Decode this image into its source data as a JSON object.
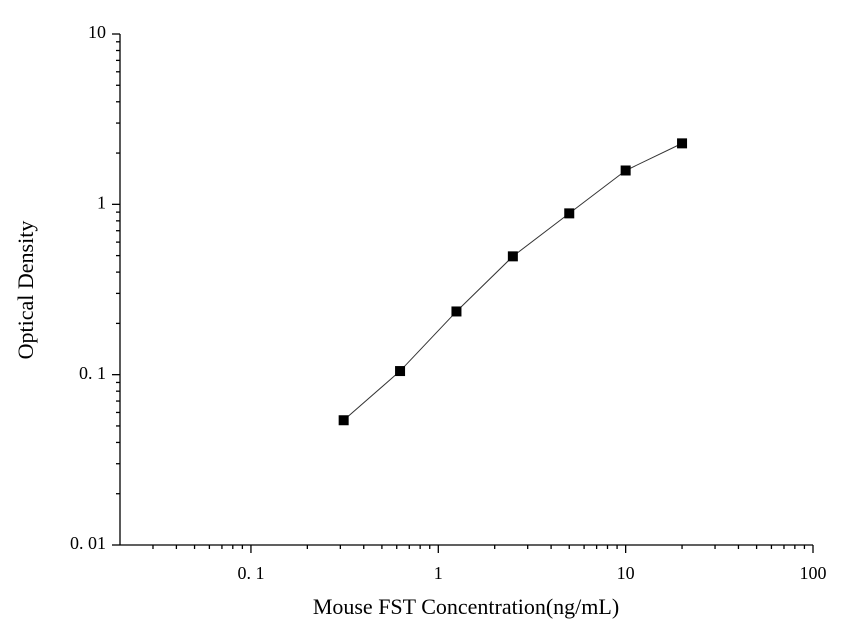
{
  "chart_data": {
    "type": "line",
    "x_label": "Mouse FST Concentration(ng/mL)",
    "y_label": "Optical Density",
    "x": [
      0.3125,
      0.625,
      1.25,
      2.5,
      5,
      10,
      20
    ],
    "series": [
      {
        "color": "#000000",
        "values": [
          0.054,
          0.105,
          0.235,
          0.495,
          0.885,
          1.58,
          2.28
        ]
      }
    ],
    "x_log": true,
    "y_log": true,
    "xlim": [
      0.02,
      100
    ],
    "ylim": [
      0.01,
      10
    ],
    "xticks": [
      {
        "value": 0.1,
        "label": "0. 1"
      },
      1,
      10,
      100
    ],
    "yticks": [
      {
        "value": 0.01,
        "label": "0. 01"
      },
      {
        "value": 0.1,
        "label": "0. 1"
      },
      1,
      10
    ],
    "x_minor_ticks": [
      0.03,
      0.04,
      0.05,
      0.06,
      0.07,
      0.08,
      0.09,
      0.2,
      0.3,
      0.4,
      0.5,
      0.6,
      0.7,
      0.8,
      0.9,
      2,
      3,
      4,
      5,
      6,
      7,
      8,
      9,
      20,
      30,
      40,
      50,
      60,
      70,
      80,
      90
    ],
    "y_minor_ticks": [
      0.02,
      0.03,
      0.04,
      0.05,
      0.06,
      0.07,
      0.08,
      0.09,
      0.2,
      0.3,
      0.4,
      0.5,
      0.6,
      0.7,
      0.8,
      0.9,
      2,
      3,
      4,
      5,
      6,
      7,
      8,
      9
    ],
    "grid": false
  }
}
